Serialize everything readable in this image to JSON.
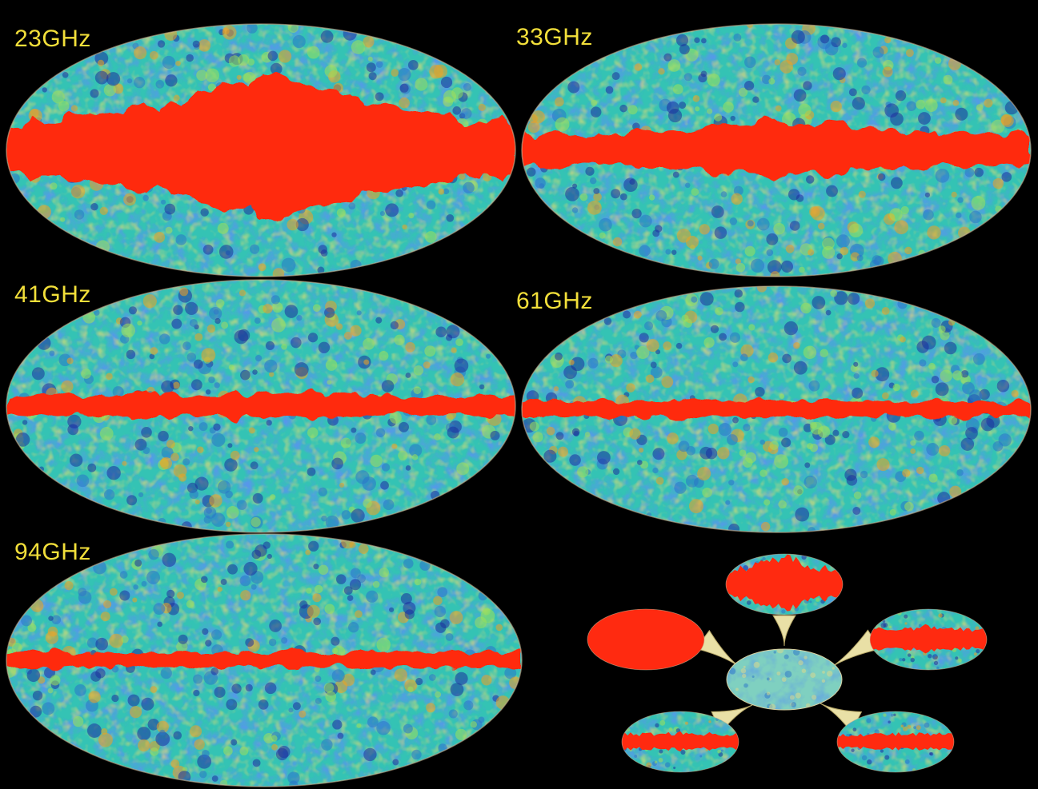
{
  "maps": [
    {
      "label": "23GHz",
      "band": "23GHz"
    },
    {
      "label": "33GHz",
      "band": "33GHz"
    },
    {
      "label": "41GHz",
      "band": "41GHz"
    },
    {
      "label": "61GHz",
      "band": "61GHz"
    },
    {
      "label": "94GHz",
      "band": "94GHz"
    }
  ],
  "palette": {
    "background": "#000000",
    "label_color": "#f2df3a",
    "cold": "#1b2f9c",
    "cool": "#2a74c8",
    "mid": "#34c3b4",
    "warm": "#9fe05a",
    "galactic_plane": "#ff2a10",
    "arrow_fill": "#e9e0a6"
  },
  "inset": {
    "description_icon": "component-separation-diagram-icon"
  }
}
